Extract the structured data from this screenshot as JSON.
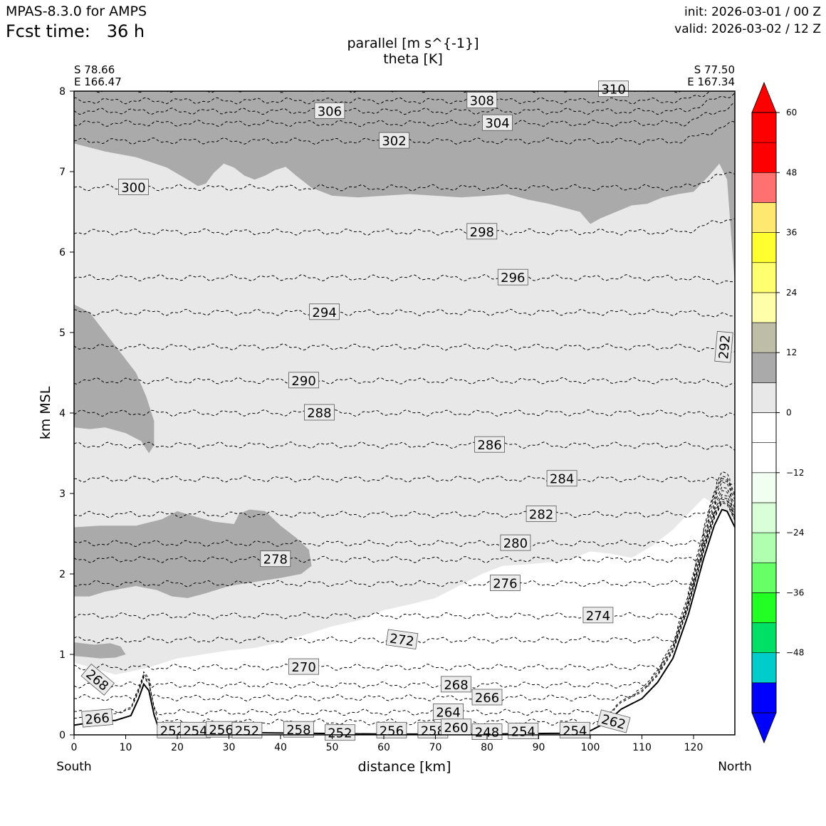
{
  "header": {
    "model": "MPAS-8.3.0 for AMPS",
    "fcst_label": "Fcst time:   36 h",
    "init": "init: 2026-03-01 / 00 Z",
    "valid": "valid: 2026-03-02 / 12 Z"
  },
  "chart_data": {
    "type": "cross-section contour",
    "title_line1": "parallel [m s^{-1}]",
    "title_line2": "theta [K]",
    "xlabel": "distance [km]",
    "ylabel": "km MSL",
    "xlim": [
      0,
      128
    ],
    "ylim": [
      0,
      8
    ],
    "x_ticks": [
      0,
      10,
      20,
      30,
      40,
      50,
      60,
      70,
      80,
      90,
      100,
      110,
      120
    ],
    "y_ticks": [
      0,
      1,
      2,
      3,
      4,
      5,
      6,
      7,
      8
    ],
    "left_end": {
      "lat": "S 78.66",
      "lon": "E 166.47",
      "side": "South"
    },
    "right_end": {
      "lat": "S 77.50",
      "lon": "E 167.34",
      "side": "North"
    },
    "colorbar": {
      "ticks": [
        60,
        48,
        36,
        24,
        12,
        0,
        -12,
        -24,
        -36,
        -48
      ],
      "tick_labels": [
        "60",
        "48",
        "36",
        "24",
        "12",
        "0",
        "−12",
        "−24",
        "−36",
        "−48"
      ],
      "levels": [
        -60,
        -54,
        -48,
        -42,
        -36,
        -30,
        -24,
        -18,
        -12,
        -6,
        0,
        6,
        12,
        18,
        24,
        30,
        36,
        42,
        48,
        54,
        60
      ],
      "colors": [
        "#0000ff",
        "#00cccc",
        "#00e066",
        "#22ff22",
        "#66ff66",
        "#b0ffb0",
        "#d8ffd8",
        "#f0fff0",
        "#ffffff",
        "#ffffff",
        "#e8e8e8",
        "#aaaaaa",
        "#bdbda8",
        "#ffffaa",
        "#ffff70",
        "#ffff30",
        "#ffe870",
        "#ff7070",
        "#ff0000"
      ],
      "extend_low": "#0000ff",
      "extend_high": "#ff0000"
    },
    "terrain": [
      [
        0,
        0.12
      ],
      [
        4,
        0.16
      ],
      [
        8,
        0.18
      ],
      [
        11,
        0.24
      ],
      [
        12.5,
        0.45
      ],
      [
        13.5,
        0.63
      ],
      [
        14.5,
        0.55
      ],
      [
        15.5,
        0.25
      ],
      [
        16.5,
        0.06
      ],
      [
        18,
        0.03
      ],
      [
        30,
        0.03
      ],
      [
        45,
        0.02
      ],
      [
        60,
        0.01
      ],
      [
        80,
        0.01
      ],
      [
        95,
        0.02
      ],
      [
        100,
        0.05
      ],
      [
        103,
        0.15
      ],
      [
        106,
        0.32
      ],
      [
        110,
        0.45
      ],
      [
        113,
        0.65
      ],
      [
        116,
        0.95
      ],
      [
        119,
        1.5
      ],
      [
        122,
        2.2
      ],
      [
        124,
        2.6
      ],
      [
        125.5,
        2.8
      ],
      [
        126.5,
        2.78
      ],
      [
        128,
        2.58
      ]
    ],
    "wind_regions": [
      {
        "label": "upper",
        "value": 15,
        "points": [
          [
            0,
            8
          ],
          [
            128,
            8
          ],
          [
            128,
            5.6
          ],
          [
            127.3,
            6.2
          ],
          [
            126.5,
            6.9
          ],
          [
            125,
            7.1
          ],
          [
            123,
            6.95
          ],
          [
            120,
            6.75
          ],
          [
            117,
            6.72
          ],
          [
            114,
            6.68
          ],
          [
            111,
            6.6
          ],
          [
            108,
            6.58
          ],
          [
            105,
            6.5
          ],
          [
            102,
            6.42
          ],
          [
            100,
            6.35
          ],
          [
            98,
            6.5
          ],
          [
            95,
            6.55
          ],
          [
            92,
            6.6
          ],
          [
            88,
            6.65
          ],
          [
            84,
            6.72
          ],
          [
            80,
            6.7
          ],
          [
            75,
            6.68
          ],
          [
            70,
            6.7
          ],
          [
            65,
            6.72
          ],
          [
            60,
            6.7
          ],
          [
            55,
            6.68
          ],
          [
            50,
            6.7
          ],
          [
            46,
            6.8
          ],
          [
            43,
            6.95
          ],
          [
            41,
            7.06
          ],
          [
            39,
            7.02
          ],
          [
            37,
            6.95
          ],
          [
            35,
            6.9
          ],
          [
            33,
            6.95
          ],
          [
            31,
            7.05
          ],
          [
            29,
            7.1
          ],
          [
            27,
            6.98
          ],
          [
            25.5,
            6.85
          ],
          [
            24,
            6.82
          ],
          [
            22,
            6.9
          ],
          [
            18,
            7.05
          ],
          [
            12,
            7.18
          ],
          [
            6,
            7.25
          ],
          [
            3,
            7.3
          ],
          [
            0,
            7.35
          ]
        ]
      },
      {
        "label": "left-mid",
        "value": 15,
        "points": [
          [
            0,
            5.35
          ],
          [
            3,
            5.25
          ],
          [
            6,
            5.0
          ],
          [
            9,
            4.75
          ],
          [
            12,
            4.5
          ],
          [
            14,
            4.2
          ],
          [
            15.5,
            3.9
          ],
          [
            15.5,
            3.6
          ],
          [
            14.5,
            3.5
          ],
          [
            13,
            3.65
          ],
          [
            10,
            3.75
          ],
          [
            6,
            3.82
          ],
          [
            3,
            3.8
          ],
          [
            0,
            3.82
          ]
        ]
      },
      {
        "label": "lower",
        "value": 15,
        "points": [
          [
            0,
            2.58
          ],
          [
            5,
            2.6
          ],
          [
            12,
            2.6
          ],
          [
            17,
            2.68
          ],
          [
            20,
            2.78
          ],
          [
            23,
            2.72
          ],
          [
            27,
            2.65
          ],
          [
            31,
            2.62
          ],
          [
            32,
            2.75
          ],
          [
            34,
            2.8
          ],
          [
            37,
            2.78
          ],
          [
            40,
            2.6
          ],
          [
            43,
            2.45
          ],
          [
            45.5,
            2.3
          ],
          [
            46,
            2.1
          ],
          [
            44,
            2.0
          ],
          [
            40,
            1.95
          ],
          [
            35,
            1.9
          ],
          [
            30,
            1.85
          ],
          [
            25,
            1.75
          ],
          [
            22,
            1.7
          ],
          [
            19,
            1.72
          ],
          [
            16,
            1.8
          ],
          [
            12,
            1.85
          ],
          [
            6,
            1.78
          ],
          [
            3,
            1.72
          ],
          [
            0,
            1.72
          ]
        ]
      },
      {
        "label": "lower-left",
        "value": 15,
        "points": [
          [
            0,
            1.15
          ],
          [
            4,
            1.12
          ],
          [
            7,
            1.14
          ],
          [
            9,
            1.1
          ],
          [
            10,
            1.0
          ],
          [
            8,
            0.96
          ],
          [
            5,
            0.95
          ],
          [
            2,
            0.97
          ],
          [
            0,
            0.98
          ]
        ]
      }
    ],
    "zero_region": [
      [
        0,
        0.9
      ],
      [
        4,
        0.82
      ],
      [
        8,
        0.75
      ],
      [
        12,
        0.8
      ],
      [
        15,
        0.85
      ],
      [
        20,
        0.95
      ],
      [
        25,
        1.0
      ],
      [
        30,
        1.05
      ],
      [
        35,
        1.08
      ],
      [
        40,
        1.15
      ],
      [
        45,
        1.25
      ],
      [
        50,
        1.35
      ],
      [
        55,
        1.42
      ],
      [
        60,
        1.55
      ],
      [
        65,
        1.62
      ],
      [
        70,
        1.7
      ],
      [
        76,
        1.9
      ],
      [
        79,
        2.0
      ],
      [
        83,
        2.1
      ],
      [
        88,
        2.12
      ],
      [
        93,
        2.15
      ],
      [
        97,
        2.2
      ],
      [
        100,
        2.28
      ],
      [
        104,
        2.25
      ],
      [
        108,
        2.2
      ],
      [
        112,
        2.35
      ],
      [
        116,
        2.55
      ],
      [
        119,
        2.75
      ],
      [
        122,
        2.95
      ],
      [
        124.5,
        2.85
      ],
      [
        126,
        2.8
      ],
      [
        128,
        2.6
      ],
      [
        128,
        0
      ],
      [
        0,
        0
      ]
    ],
    "theta_contours": [
      {
        "value": 310,
        "y0": 8.02,
        "label": "310",
        "label_x": 104.5
      },
      {
        "value": 308,
        "y0": 7.88,
        "label": "308",
        "label_x": 79
      },
      {
        "value": 306,
        "y0": 7.75,
        "label": "306",
        "label_x": 49.5
      },
      {
        "value": 304,
        "y0": 7.6,
        "label": "304",
        "label_x": 82
      },
      {
        "value": 302,
        "y0": 7.38,
        "label": "302",
        "label_x": 62
      },
      {
        "value": 300,
        "y0": 6.8,
        "label": "300",
        "label_x": 11.5
      },
      {
        "value": 298,
        "y0": 6.25,
        "label": "298",
        "label_x": 79
      },
      {
        "value": 296,
        "y0": 5.68,
        "label": "296",
        "label_x": 85
      },
      {
        "value": 294,
        "y0": 5.25,
        "label": "294",
        "label_x": 48.5
      },
      {
        "value": 292,
        "y0": 4.82,
        "label": "292",
        "label_x": 126
      },
      {
        "value": 290,
        "y0": 4.4,
        "label": "290",
        "label_x": 44.5
      },
      {
        "value": 288,
        "y0": 4.0,
        "label": "288",
        "label_x": 47.5
      },
      {
        "value": 286,
        "y0": 3.6,
        "label": "286",
        "label_x": 80.5
      },
      {
        "value": 284,
        "y0": 3.18,
        "label": "284",
        "label_x": 94.5
      },
      {
        "value": 282,
        "y0": 2.74,
        "label": "282",
        "label_x": 90.5
      },
      {
        "value": 280,
        "y0": 2.38,
        "label": "280",
        "label_x": 85.5
      },
      {
        "value": 278,
        "y0": 2.18,
        "label": "278",
        "label_x": 39
      },
      {
        "value": 276,
        "y0": 1.88,
        "label": "276",
        "label_x": 83.5
      },
      {
        "value": 274,
        "y0": 1.48,
        "label": "274",
        "label_x": 101.5
      },
      {
        "value": 272,
        "y0": 1.18,
        "label": "272",
        "label_x": 63.5
      },
      {
        "value": 270,
        "y0": 0.84,
        "label": "270",
        "label_x": 44.5
      },
      {
        "value": 268,
        "y0": 0.62,
        "label": "268",
        "label_x": 74
      },
      {
        "value": 266,
        "y0": 0.46,
        "label": "266",
        "label_x": 80
      },
      {
        "value": 264,
        "y0": 0.28,
        "label": "264",
        "label_x": 72.5
      },
      {
        "value": 262,
        "y0": 0.16,
        "label": "262",
        "label_x": 104.5
      }
    ],
    "near_surface_labels": [
      {
        "text": "268",
        "x": 4.5,
        "y": 0.68,
        "rotate": 40
      },
      {
        "text": "266",
        "x": 4.5,
        "y": 0.2,
        "rotate": -5
      },
      {
        "text": "252",
        "x": 19,
        "y": 0.05,
        "rotate": 0
      },
      {
        "text": "254",
        "x": 23.5,
        "y": 0.05,
        "rotate": 0
      },
      {
        "text": "256",
        "x": 28.5,
        "y": 0.06,
        "rotate": 0
      },
      {
        "text": "252",
        "x": 33.5,
        "y": 0.05,
        "rotate": 0
      },
      {
        "text": "258",
        "x": 43.5,
        "y": 0.06,
        "rotate": 0
      },
      {
        "text": "252",
        "x": 51.5,
        "y": 0.02,
        "rotate": 0
      },
      {
        "text": "256",
        "x": 61.5,
        "y": 0.05,
        "rotate": 0
      },
      {
        "text": "258",
        "x": 69.5,
        "y": 0.05,
        "rotate": 0
      },
      {
        "text": "260",
        "x": 74,
        "y": 0.09,
        "rotate": 0
      },
      {
        "text": "248",
        "x": 80,
        "y": 0.03,
        "rotate": 0
      },
      {
        "text": "254",
        "x": 87,
        "y": 0.04,
        "rotate": 0
      },
      {
        "text": "254",
        "x": 97,
        "y": 0.05,
        "rotate": 0
      }
    ]
  }
}
